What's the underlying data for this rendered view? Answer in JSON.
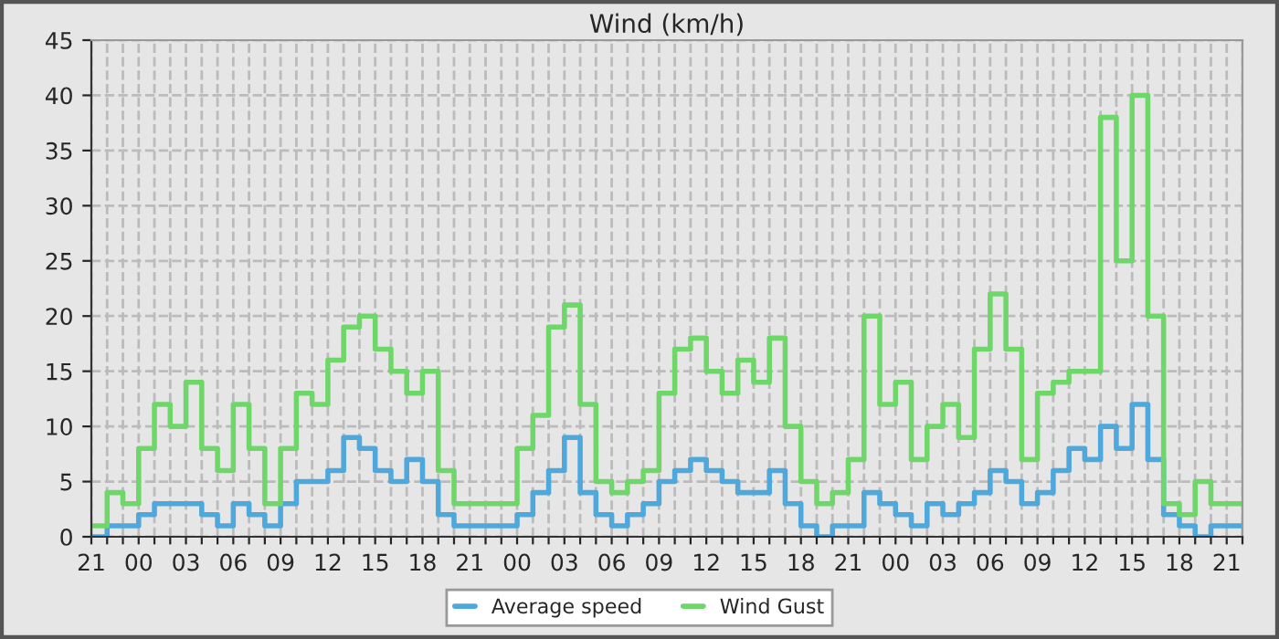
{
  "chart_data": {
    "type": "step",
    "title": "Wind (km/h)",
    "categories": [
      "21",
      null,
      null,
      "00",
      null,
      null,
      "03",
      null,
      null,
      "06",
      null,
      null,
      "09",
      null,
      null,
      "12",
      null,
      null,
      "15",
      null,
      null,
      "18",
      null,
      null,
      "21",
      null,
      null,
      "00",
      null,
      null,
      "03",
      null,
      null,
      "06",
      null,
      null,
      "09",
      null,
      null,
      "12",
      null,
      null,
      "15",
      null,
      null,
      "18",
      null,
      null,
      "21",
      null,
      null,
      "00",
      null,
      null,
      "03",
      null,
      null,
      "06",
      null,
      null,
      "09",
      null,
      null,
      "12",
      null,
      null,
      "15",
      null,
      null,
      "18",
      null,
      null,
      "21",
      null
    ],
    "series": [
      {
        "name": "Average speed",
        "color": "#4ea8dc",
        "values": [
          0,
          1,
          1,
          2,
          3,
          3,
          3,
          2,
          1,
          3,
          2,
          1,
          3,
          5,
          5,
          6,
          9,
          8,
          6,
          5,
          7,
          5,
          2,
          1,
          1,
          1,
          1,
          2,
          4,
          6,
          9,
          4,
          2,
          1,
          2,
          3,
          5,
          6,
          7,
          6,
          5,
          4,
          4,
          6,
          3,
          1,
          0,
          1,
          1,
          4,
          3,
          2,
          1,
          3,
          2,
          3,
          4,
          6,
          5,
          3,
          4,
          6,
          8,
          7,
          10,
          8,
          12,
          7,
          2,
          1,
          0,
          1,
          1,
          1
        ]
      },
      {
        "name": "Wind Gust",
        "color": "#6fd76a",
        "values": [
          1,
          4,
          3,
          8,
          12,
          10,
          14,
          8,
          6,
          12,
          8,
          3,
          8,
          13,
          12,
          16,
          19,
          20,
          17,
          15,
          13,
          15,
          6,
          3,
          3,
          3,
          3,
          8,
          11,
          19,
          21,
          12,
          5,
          4,
          5,
          6,
          13,
          17,
          18,
          15,
          13,
          16,
          14,
          18,
          10,
          5,
          3,
          4,
          7,
          20,
          12,
          14,
          7,
          10,
          12,
          9,
          17,
          22,
          17,
          7,
          13,
          14,
          15,
          15,
          38,
          25,
          40,
          20,
          3,
          2,
          5,
          3,
          3,
          3
        ]
      }
    ],
    "ylim": [
      0,
      45
    ],
    "yticks": [
      0,
      5,
      10,
      15,
      20,
      25,
      30,
      35,
      40,
      45
    ],
    "grid": true,
    "legend": "bottom",
    "line_style": "solid"
  }
}
